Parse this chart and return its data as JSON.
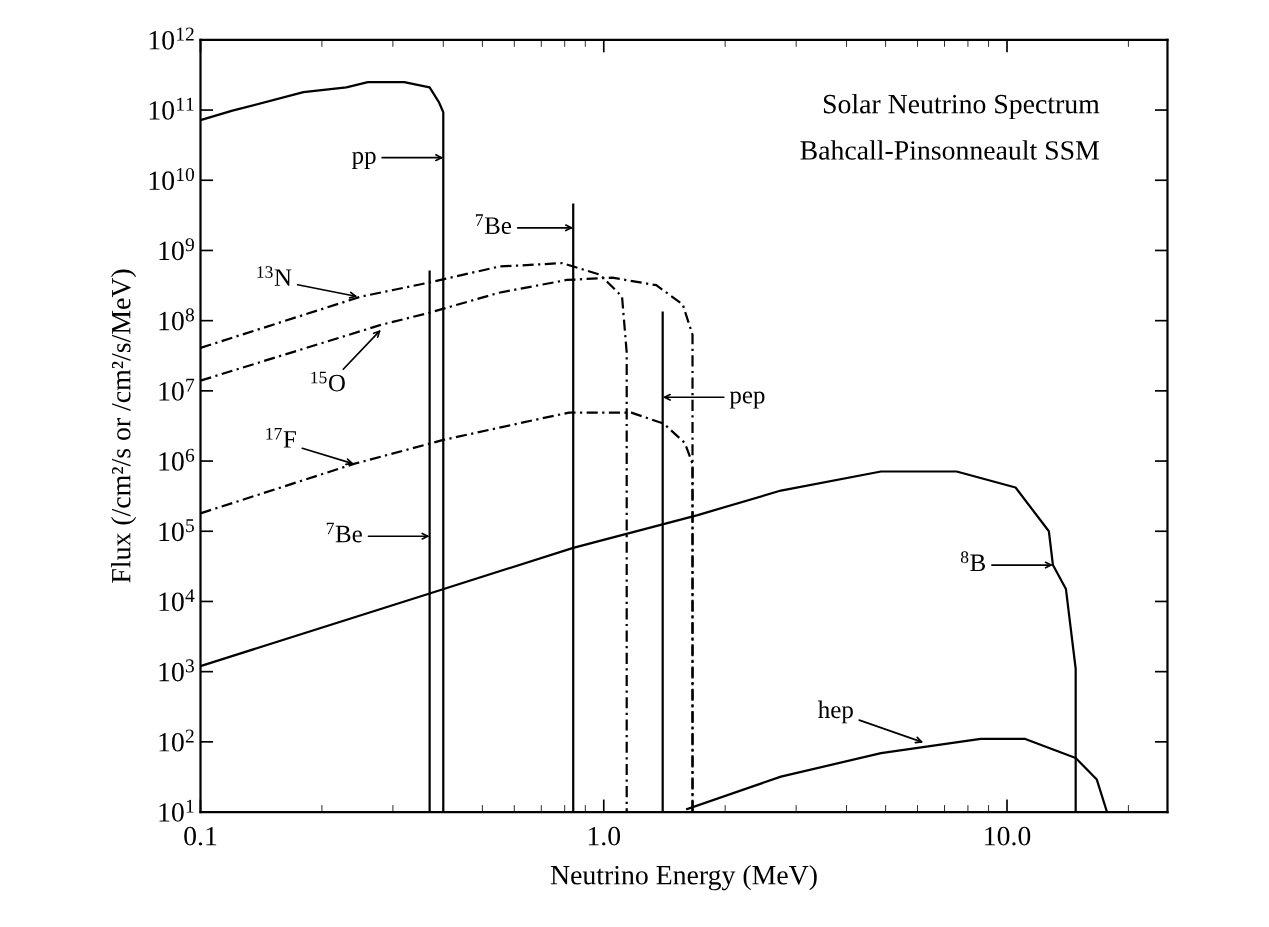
{
  "chart_data": {
    "type": "line",
    "title": "Solar Neutrino Spectrum",
    "subtitle": "Bahcall-Pinsonneault SSM",
    "xlabel": "Neutrino Energy (MeV)",
    "ylabel": "Flux (/cm²/s or /cm²/s/MeV)",
    "log": "xy",
    "grid": false,
    "legend": false,
    "marker": "none",
    "xlim": [
      0.1,
      25
    ],
    "ylim": [
      10,
      1000000000000.0
    ],
    "xticks": [
      {
        "value": 0.1,
        "label": "0.1"
      },
      {
        "value": 1,
        "label": "1.0"
      },
      {
        "value": 10,
        "label": "10.0"
      }
    ],
    "yticks": [
      {
        "value": 10,
        "label": "10$^{1}$"
      },
      {
        "value": 100,
        "label": "10$^{2}$"
      },
      {
        "value": 1000,
        "label": "10$^{3}$"
      },
      {
        "value": 10000,
        "label": "10$^{4}$"
      },
      {
        "value": 100000,
        "label": "10$^{5}$"
      },
      {
        "value": 1000000,
        "label": "10$^{6}$"
      },
      {
        "value": 10000000,
        "label": "10$^{7}$"
      },
      {
        "value": 100000000,
        "label": "10$^{8}$"
      },
      {
        "value": 1000000000,
        "label": "10$^{9}$"
      },
      {
        "value": 10000000000,
        "label": "10$^{10}$"
      },
      {
        "value": 100000000000,
        "label": "10$^{11}$"
      },
      {
        "value": 1000000000000,
        "label": "10$^{12}$"
      }
    ],
    "series": [
      {
        "color": "#000000",
        "line_style": "solid",
        "x": [
          0.1,
          0.12,
          0.18,
          0.23,
          0.26,
          0.32,
          0.37,
          0.39,
          0.4,
          0.4,
          0.4
        ],
        "values": [
          72000000000.0,
          98000000000.0,
          180000000000.0,
          210000000000.0,
          250000000000.0,
          250000000000.0,
          210000000000.0,
          130000000000.0,
          93000000000.0,
          21000000000.0,
          10
        ]
      },
      {
        "color": "#000000",
        "line_style": "solid",
        "x": [
          0.37,
          0.37,
          0.37
        ],
        "values": [
          500000000.0,
          85000.0,
          10
        ]
      },
      {
        "color": "#000000",
        "line_style": "solid",
        "x": [
          0.84,
          0.84,
          0.84
        ],
        "values": [
          4500000000.0,
          2100000000.0,
          10
        ]
      },
      {
        "color": "#000000",
        "line_style": "solid",
        "x": [
          1.4,
          1.4,
          1.4
        ],
        "values": [
          130000000.0,
          8100000.0,
          10
        ]
      },
      {
        "color": "#000000",
        "line_style": "dashed",
        "x": [
          0.1,
          0.25,
          0.37,
          0.55,
          0.79,
          0.98,
          1.11,
          1.14,
          1.14
        ],
        "values": [
          41000000.0,
          220000000.0,
          350000000.0,
          590000000.0,
          660000000.0,
          450000000.0,
          220000000.0,
          35000000.0,
          10
        ]
      },
      {
        "color": "#000000",
        "line_style": "dashed",
        "x": [
          0.1,
          0.28,
          0.37,
          0.55,
          0.81,
          1.05,
          1.35,
          1.57,
          1.66,
          1.66
        ],
        "values": [
          14000000.0,
          87000000.0,
          130000000.0,
          250000000.0,
          380000000.0,
          410000000.0,
          320000000.0,
          170000000.0,
          63000000.0,
          10
        ]
      },
      {
        "color": "#000000",
        "line_style": "dashed",
        "x": [
          0.1,
          0.24,
          0.4,
          0.68,
          0.82,
          1.17,
          1.41,
          1.59,
          1.66,
          1.66
        ],
        "values": [
          180000.0,
          910000.0,
          2000000.0,
          3900000.0,
          4900000.0,
          4900000.0,
          3400000.0,
          1800000.0,
          910000.0,
          10
        ]
      },
      {
        "color": "#000000",
        "line_style": "solid",
        "x": [
          0.1,
          0.37,
          0.84,
          1.71,
          2.75,
          4.87,
          7.5,
          10.5,
          12.7,
          13.0,
          14.0,
          14.8,
          14.8
        ],
        "values": [
          1200.0,
          13000.0,
          58000.0,
          170000.0,
          380000.0,
          710000.0,
          710000.0,
          420000.0,
          100000.0,
          33000.0,
          15000.0,
          1100.0,
          10
        ]
      },
      {
        "color": "#000000",
        "line_style": "solid",
        "x": [
          1.61,
          2.75,
          4.87,
          8.6,
          11.1,
          14.8,
          16.7,
          17.7
        ],
        "values": [
          11,
          32,
          69,
          110,
          110,
          59,
          29,
          10
        ]
      }
    ],
    "annotations": [
      {
        "text": "pp",
        "x": 0.4,
        "y": 21000000000.0
      },
      {
        "text": "$^{7}$Be",
        "x": 0.84,
        "y": 2100000000.0
      },
      {
        "text": "$^{13}$N",
        "x": 0.245,
        "y": 220000000.0
      },
      {
        "text": "$^{15}$O",
        "x": 0.28,
        "y": 74000000.0
      },
      {
        "text": "pep",
        "x": 1.4,
        "y": 8100000.0
      },
      {
        "text": "$^{17}$F",
        "x": 0.24,
        "y": 910000.0
      },
      {
        "text": "$^{7}$Be",
        "x": 0.37,
        "y": 85000.0
      },
      {
        "text": "$^{8}$B",
        "x": 13.0,
        "y": 33000.0
      },
      {
        "text": "hep",
        "x": 6.2,
        "y": 98
      }
    ]
  }
}
